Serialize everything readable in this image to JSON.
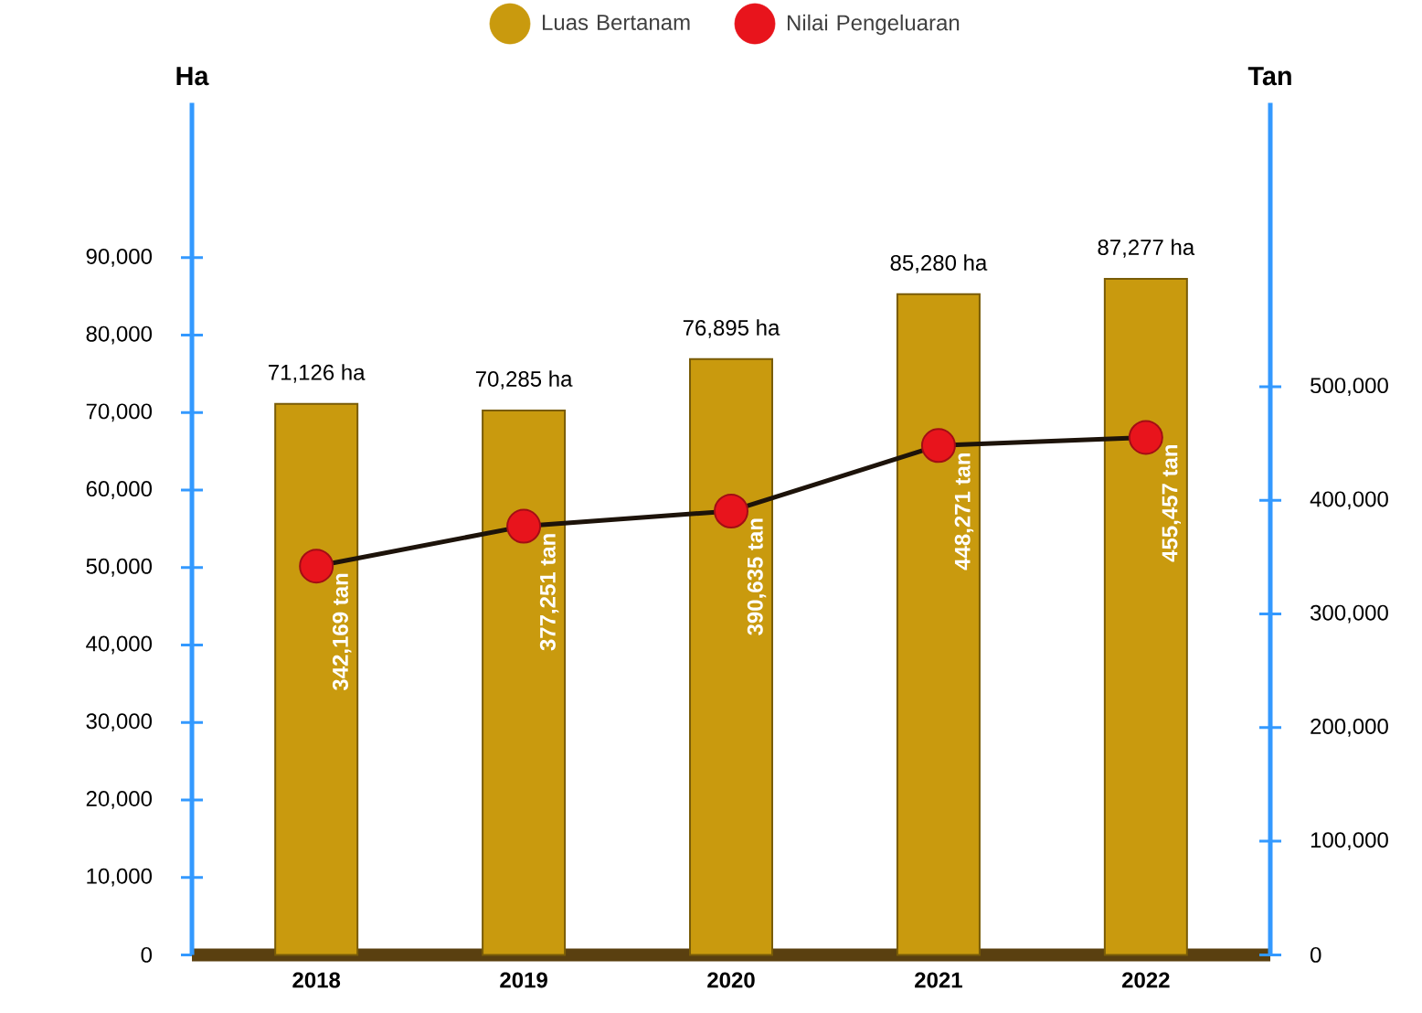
{
  "chart_data": {
    "type": "bar",
    "ylabel": "Ha",
    "y2label": "Tan",
    "legend": "top",
    "marker": "circle",
    "categories": [
      "2018",
      "2019",
      "2020",
      "2021",
      "2022"
    ],
    "series": [
      {
        "name": "Luas Bertanam",
        "color": "#c99a0e",
        "values": [
          71126,
          70285,
          76895,
          85280,
          87277
        ],
        "value_labels": [
          "71,126 ha",
          "70,285 ha",
          "76,895 ha",
          "85,280 ha",
          "87,277 ha"
        ]
      },
      {
        "name": "Nilai Pengeluaran",
        "type": "line",
        "axis": "y2",
        "color": "#e8141c",
        "values": [
          342169,
          377251,
          390635,
          448271,
          455457
        ],
        "value_labels": [
          "342,169 tan",
          "377,251 tan",
          "390,635 tan",
          "448,271 tan",
          "455,457 tan"
        ]
      }
    ],
    "ylim": [
      0,
      110000
    ],
    "yticks": [
      {
        "value": 0,
        "label": "0"
      },
      {
        "value": 10000,
        "label": "10,000"
      },
      {
        "value": 20000,
        "label": "20,000"
      },
      {
        "value": 30000,
        "label": "30,000"
      },
      {
        "value": 40000,
        "label": "40,000"
      },
      {
        "value": 50000,
        "label": "50,000"
      },
      {
        "value": 60000,
        "label": "60,000"
      },
      {
        "value": 70000,
        "label": "70,000"
      },
      {
        "value": 80000,
        "label": "80,000"
      },
      {
        "value": 90000,
        "label": "90,000"
      }
    ],
    "y2lim": [
      0,
      750000
    ],
    "y2ticks": [
      {
        "value": 0,
        "label": "0"
      },
      {
        "value": 100000,
        "label": "100,000"
      },
      {
        "value": 200000,
        "label": "200,000"
      },
      {
        "value": 300000,
        "label": "300,000"
      },
      {
        "value": 400000,
        "label": "400,000"
      },
      {
        "value": 500000,
        "label": "500,000"
      }
    ]
  }
}
